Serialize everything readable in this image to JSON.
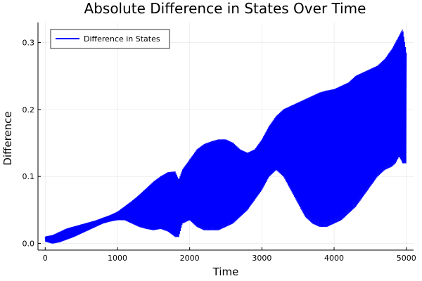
{
  "chart_data": {
    "type": "line",
    "title": "Absolute Difference in States Over Time",
    "xlabel": "Time",
    "ylabel": "Difference",
    "xlim": [
      -100,
      5100
    ],
    "ylim": [
      -0.01,
      0.33
    ],
    "x_ticks": [
      0,
      1000,
      2000,
      3000,
      4000,
      5000
    ],
    "x_tick_labels": [
      "0",
      "1000",
      "2000",
      "3000",
      "4000",
      "5000"
    ],
    "y_ticks": [
      0.0,
      0.1,
      0.2,
      0.3
    ],
    "y_tick_labels": [
      "0.0",
      "0.1",
      "0.2",
      "0.3"
    ],
    "grid": true,
    "legend_position": "top-left",
    "series": [
      {
        "name": "Difference in States",
        "color": "#0000ff",
        "oscillating": true,
        "envelope": {
          "x": [
            0,
            100,
            200,
            300,
            400,
            500,
            600,
            700,
            800,
            900,
            1000,
            1100,
            1200,
            1300,
            1400,
            1500,
            1600,
            1700,
            1800,
            1850,
            1900,
            2000,
            2100,
            2200,
            2300,
            2400,
            2500,
            2600,
            2700,
            2800,
            2900,
            3000,
            3100,
            3200,
            3300,
            3400,
            3500,
            3600,
            3700,
            3800,
            3900,
            4000,
            4100,
            4200,
            4300,
            4400,
            4500,
            4600,
            4700,
            4800,
            4850,
            4900,
            4950,
            5000
          ],
          "upper": [
            0.01,
            0.012,
            0.017,
            0.022,
            0.025,
            0.028,
            0.031,
            0.034,
            0.038,
            0.042,
            0.047,
            0.055,
            0.063,
            0.072,
            0.082,
            0.092,
            0.1,
            0.106,
            0.107,
            0.095,
            0.11,
            0.125,
            0.14,
            0.148,
            0.152,
            0.155,
            0.155,
            0.15,
            0.14,
            0.135,
            0.14,
            0.155,
            0.175,
            0.19,
            0.2,
            0.205,
            0.21,
            0.215,
            0.22,
            0.225,
            0.228,
            0.23,
            0.235,
            0.24,
            0.25,
            0.255,
            0.26,
            0.265,
            0.275,
            0.29,
            0.3,
            0.31,
            0.32,
            0.285
          ],
          "lower": [
            0.003,
            0.0,
            0.002,
            0.006,
            0.01,
            0.015,
            0.02,
            0.025,
            0.03,
            0.033,
            0.035,
            0.035,
            0.03,
            0.025,
            0.022,
            0.02,
            0.022,
            0.018,
            0.01,
            0.01,
            0.03,
            0.035,
            0.025,
            0.02,
            0.02,
            0.02,
            0.025,
            0.03,
            0.04,
            0.05,
            0.065,
            0.08,
            0.1,
            0.11,
            0.1,
            0.08,
            0.06,
            0.04,
            0.03,
            0.025,
            0.025,
            0.03,
            0.035,
            0.045,
            0.055,
            0.07,
            0.085,
            0.1,
            0.11,
            0.115,
            0.12,
            0.13,
            0.12,
            0.12
          ],
          "mid": [
            0.006,
            0.007,
            0.01,
            0.014,
            0.018,
            0.022,
            0.026,
            0.03,
            0.034,
            0.038,
            0.042,
            0.046,
            0.05,
            0.055,
            0.055,
            0.055,
            0.06,
            0.065,
            0.07,
            0.06,
            0.07,
            0.08,
            0.085,
            0.09,
            0.095,
            0.1,
            0.105,
            0.11,
            0.11,
            0.11,
            0.12,
            0.13,
            0.145,
            0.16,
            0.165,
            0.17,
            0.175,
            0.18,
            0.185,
            0.19,
            0.195,
            0.2,
            0.205,
            0.21,
            0.21,
            0.21,
            0.21,
            0.21,
            0.22,
            0.23,
            0.23,
            0.24,
            0.23,
            0.23
          ]
        }
      }
    ]
  }
}
